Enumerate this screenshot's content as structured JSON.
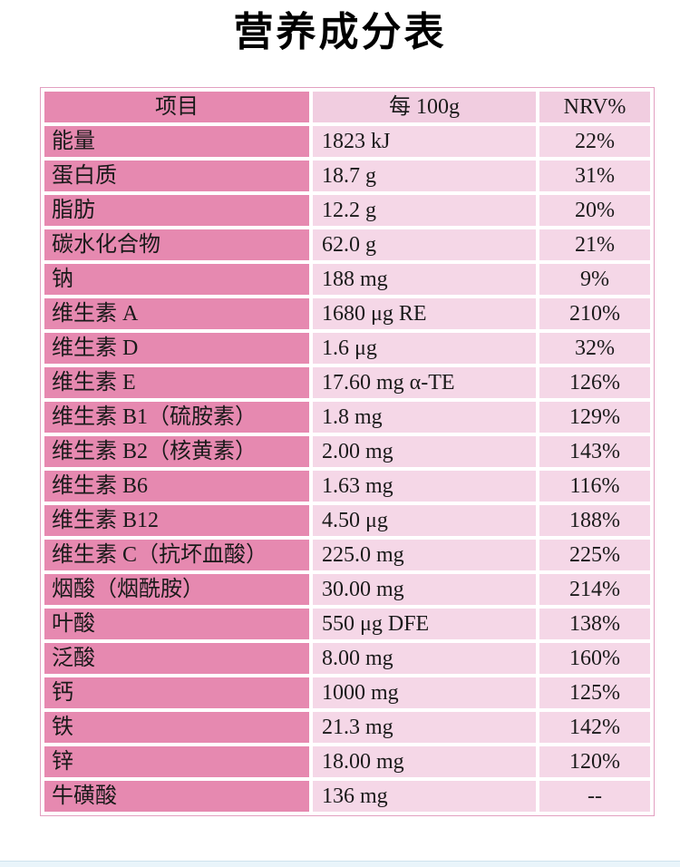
{
  "title": "营养成分表",
  "colors": {
    "item_bg": "#e689b0",
    "value_bg": "#f5d7e7",
    "header_value_bg": "#f1cde0",
    "table_border": "#e2a0c1",
    "text": "#1a1a1a",
    "bottom_bar": "#e9f4fa",
    "bottom_bar_edge": "#cfe3ee"
  },
  "table": {
    "headers": {
      "item": "项目",
      "per_100g": "每 100g",
      "nrv": "NRV%"
    },
    "rows": [
      {
        "item": "能量",
        "per_100g": "1823 kJ",
        "nrv": "22%"
      },
      {
        "item": "蛋白质",
        "per_100g": "18.7 g",
        "nrv": "31%"
      },
      {
        "item": "脂肪",
        "per_100g": "12.2 g",
        "nrv": "20%"
      },
      {
        "item": "碳水化合物",
        "per_100g": "62.0 g",
        "nrv": "21%"
      },
      {
        "item": "钠",
        "per_100g": "188 mg",
        "nrv": "9%"
      },
      {
        "item": "维生素 A",
        "per_100g": "1680 μg RE",
        "nrv": "210%"
      },
      {
        "item": "维生素 D",
        "per_100g": "1.6 μg",
        "nrv": "32%"
      },
      {
        "item": "维生素 E",
        "per_100g": "17.60 mg α-TE",
        "nrv": "126%"
      },
      {
        "item": "维生素 B1（硫胺素）",
        "per_100g": "1.8 mg",
        "nrv": "129%"
      },
      {
        "item": "维生素 B2（核黄素）",
        "per_100g": "2.00 mg",
        "nrv": "143%"
      },
      {
        "item": "维生素 B6",
        "per_100g": "1.63 mg",
        "nrv": "116%"
      },
      {
        "item": "维生素 B12",
        "per_100g": "4.50 μg",
        "nrv": "188%"
      },
      {
        "item": "维生素 C（抗坏血酸）",
        "per_100g": "225.0 mg",
        "nrv": "225%"
      },
      {
        "item": "烟酸（烟酰胺）",
        "per_100g": "30.00 mg",
        "nrv": "214%"
      },
      {
        "item": "叶酸",
        "per_100g": "550 μg DFE",
        "nrv": "138%"
      },
      {
        "item": "泛酸",
        "per_100g": "8.00 mg",
        "nrv": "160%"
      },
      {
        "item": "钙",
        "per_100g": "1000 mg",
        "nrv": "125%"
      },
      {
        "item": "铁",
        "per_100g": "21.3 mg",
        "nrv": "142%"
      },
      {
        "item": "锌",
        "per_100g": "18.00 mg",
        "nrv": "120%"
      },
      {
        "item": "牛磺酸",
        "per_100g": "136 mg",
        "nrv": "--"
      }
    ]
  }
}
